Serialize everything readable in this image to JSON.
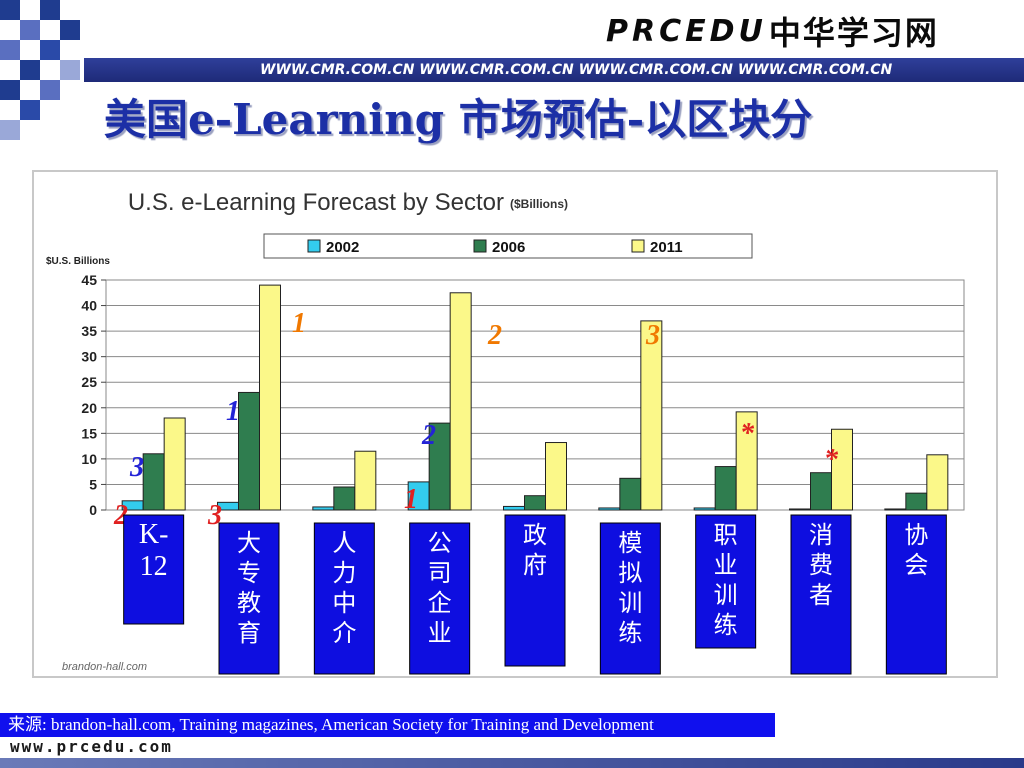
{
  "header": {
    "logo_latin": "PRCEDU",
    "logo_cn": "中华学习网",
    "stripe_text": "WWW.CMR.COM.CN WWW.CMR.COM.CN WWW.CMR.COM.CN WWW.CMR.COM.CN",
    "page_title": "美国e-Learning 市场预估-以区块分"
  },
  "colors": {
    "series_2002": "#33ccee",
    "series_2006": "#2f7d4f",
    "series_2011": "#fbf889",
    "label_box": "#0e0ee0",
    "annotation_orange": "#f07800",
    "annotation_red": "#e02020",
    "annotation_blue": "#2323d6"
  },
  "chart_data": {
    "type": "bar",
    "title": "U.S. e-Learning Forecast by Sector",
    "title_unit": "($Billions)",
    "ylabel": "$U.S. Billions",
    "ylim": [
      0,
      45
    ],
    "yticks": [
      0,
      5,
      10,
      15,
      20,
      25,
      30,
      35,
      40,
      45
    ],
    "grid": true,
    "legend_position": "top",
    "watermark": "brandon-hall.com",
    "categories": [
      "K-12",
      "大专教育",
      "人力中介",
      "公司企业",
      "政府",
      "模拟训练",
      "职业训练",
      "消费者",
      "协会"
    ],
    "series": [
      {
        "name": "2002",
        "values": [
          1.8,
          1.5,
          0.6,
          5.5,
          0.7,
          0.4,
          0.4,
          0.2,
          0.2
        ]
      },
      {
        "name": "2006",
        "values": [
          11,
          23,
          4.5,
          17,
          2.8,
          6.2,
          8.5,
          7.3,
          3.3
        ]
      },
      {
        "name": "2011",
        "values": [
          18,
          44,
          11.5,
          42.5,
          13.2,
          37,
          19.2,
          15.8,
          10.8
        ]
      }
    ],
    "annotations": [
      {
        "text": "1",
        "color": "orange",
        "near_category": 1
      },
      {
        "text": "2",
        "color": "orange",
        "near_category": 3
      },
      {
        "text": "3",
        "color": "orange",
        "near_category": 5
      },
      {
        "text": "1",
        "color": "blue",
        "near_category": 1
      },
      {
        "text": "2",
        "color": "blue",
        "near_category": 3
      },
      {
        "text": "3",
        "color": "blue",
        "near_category": 0
      },
      {
        "text": "*",
        "color": "red",
        "near_category": 6
      },
      {
        "text": "*",
        "color": "red",
        "near_category": 7
      },
      {
        "text": "2",
        "color": "red",
        "near_category": 0
      },
      {
        "text": "3",
        "color": "red",
        "near_category": 1
      },
      {
        "text": "1",
        "color": "red",
        "near_category": 3
      }
    ]
  },
  "source": {
    "text": "来源: brandon-hall.com, Training magazines, American Society for Training and Development"
  },
  "footer": {
    "url": "www.prcedu.com"
  }
}
